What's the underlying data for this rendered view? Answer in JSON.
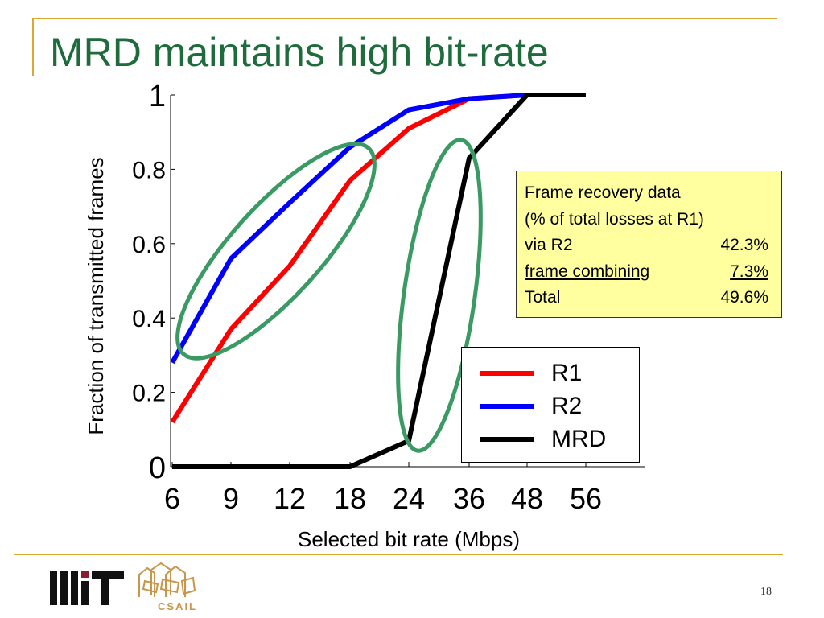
{
  "slide": {
    "title": "MRD maintains high bit-rate",
    "page_number": "18",
    "logos": {
      "mit": "MIT",
      "csail": "CSAIL"
    },
    "colors": {
      "title": "#1e6b3c",
      "rule": "#d9a934",
      "ellipse": "#3a9a63",
      "info_box": "#ffffa0"
    }
  },
  "chart_data": {
    "type": "line",
    "title": "",
    "xlabel": "Selected bit rate (Mbps)",
    "ylabel": "Fraction of transmitted frames",
    "categories": [
      "6",
      "9",
      "12",
      "18",
      "24",
      "36",
      "48",
      "56"
    ],
    "ylim": [
      0,
      1
    ],
    "yticks": [
      "0",
      "0.2",
      "0.4",
      "0.6",
      "0.8",
      "1"
    ],
    "grid": false,
    "legend_position": "bottom-right",
    "series": [
      {
        "name": "R1",
        "color": "#ff0000",
        "values": [
          0.12,
          0.37,
          0.54,
          0.77,
          0.91,
          0.99,
          1.0,
          1.0
        ]
      },
      {
        "name": "R2",
        "color": "#0000ff",
        "values": [
          0.28,
          0.56,
          0.71,
          0.86,
          0.96,
          0.99,
          1.0,
          1.0
        ]
      },
      {
        "name": "MRD",
        "color": "#000000",
        "values": [
          0.0,
          0.0,
          0.0,
          0.0,
          0.07,
          0.83,
          1.0,
          1.0
        ]
      }
    ]
  },
  "info_box": {
    "line1": "Frame recovery data",
    "line2": "(% of total losses at R1)",
    "rows": [
      {
        "label": "via R2",
        "value": "42.3%"
      },
      {
        "label": "frame combining",
        "value": "7.3%"
      },
      {
        "label": "Total",
        "value": "49.6%"
      }
    ]
  },
  "annotations": {
    "ellipses": [
      {
        "name": "left-cluster-ellipse",
        "description": "R1/R2 low bit-rate region"
      },
      {
        "name": "mrd-transition-ellipse",
        "description": "MRD jump region"
      }
    ]
  }
}
